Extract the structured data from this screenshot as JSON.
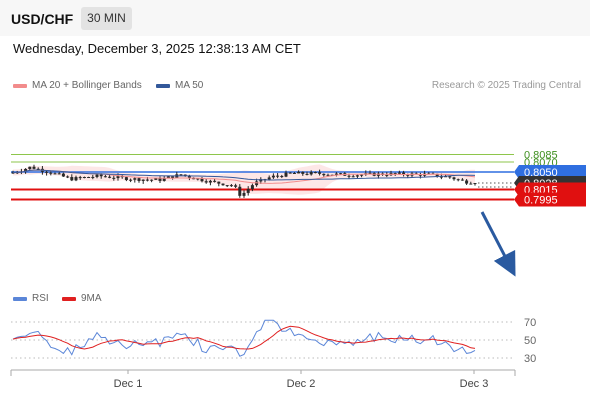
{
  "header": {
    "pair": "USD/CHF",
    "timeframe": "30 MIN"
  },
  "datetime": "Wednesday, December 3, 2025 12:38:13 AM CET",
  "legend": {
    "ma20": "MA 20 + Bollinger Bands",
    "ma50": "MA 50",
    "credit": "Research © 2025 Trading Central",
    "rsi": "RSI",
    "ma9": "9MA"
  },
  "colors": {
    "ma20": "#f28c8c",
    "ma50": "#33589a",
    "rsi": "#5b86d8",
    "ma9": "#e02020",
    "resistance_green": "#8ec64b",
    "level_blue": "#2f6fe0",
    "level_red": "#e01010",
    "price_dark": "#333333",
    "arrow": "#2a5aa0"
  },
  "chart_data": {
    "type": "candlestick",
    "price_levels": [
      {
        "value": "0.8085",
        "kind": "resistance-green"
      },
      {
        "value": "0.8070",
        "kind": "resistance-green"
      },
      {
        "value": "0.8050",
        "kind": "resistance-blue"
      },
      {
        "value": "0.8028",
        "kind": "current-price"
      },
      {
        "value": "0.8015",
        "kind": "support-red"
      },
      {
        "value": "0.7995",
        "kind": "support-red"
      }
    ],
    "x_ticks": [
      "Dec 1",
      "Dec 2",
      "Dec 3"
    ],
    "rsi_ticks": [
      "70",
      "50",
      "30"
    ],
    "forecast": "down"
  }
}
